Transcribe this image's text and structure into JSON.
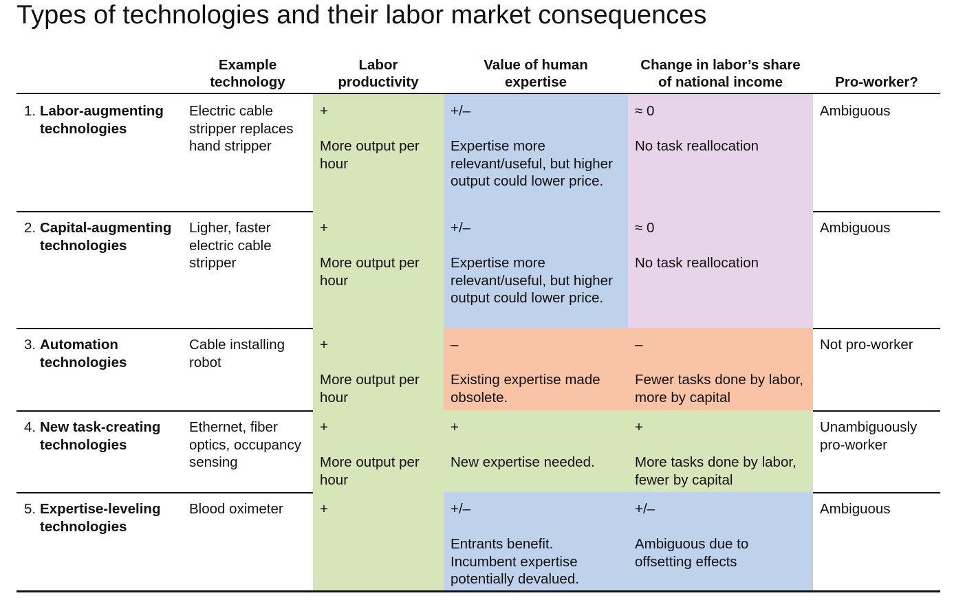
{
  "title": "Types of technologies and their labor market consequences",
  "table": {
    "headers": [
      "Example technology",
      "Labor productivity",
      "Value of human expertise",
      "Change in labor’s share of national income",
      "Pro-worker?"
    ],
    "rows": [
      {
        "number": "1.",
        "name": "Labor-augmenting technologies",
        "example": "Electric cable stripper replaces hand stripper",
        "productivity": {
          "sign": "+",
          "text": "More output per hour",
          "color": "#d6e6b9"
        },
        "expertise": {
          "sign": "+/–",
          "text": "Expertise more relevant/useful, but higher output could lower price.",
          "color": "#bed2eb"
        },
        "labor_share": {
          "sign": "≈ 0",
          "text": "No task reallocation",
          "color": "#e8d4e9"
        },
        "pro_worker": "Ambiguous"
      },
      {
        "number": "2.",
        "name": "Capital-augmenting technologies",
        "example": "Ligher, faster electric cable stripper",
        "productivity": {
          "sign": "+",
          "text": "More output per hour",
          "color": "#d6e6b9"
        },
        "expertise": {
          "sign": "+/–",
          "text": "Expertise more relevant/useful, but higher output could lower price.",
          "color": "#bed2eb"
        },
        "labor_share": {
          "sign": "≈ 0",
          "text": "No task reallocation",
          "color": "#e8d4e9"
        },
        "pro_worker": "Ambiguous"
      },
      {
        "number": "3.",
        "name": "Automation technologies",
        "example": "Cable installing robot",
        "productivity": {
          "sign": "+",
          "text": "More output per hour",
          "color": "#d6e6b9"
        },
        "expertise": {
          "sign": "–",
          "text": "Existing expertise made obsolete.",
          "color": "#f8c4a5"
        },
        "labor_share": {
          "sign": "–",
          "text": "Fewer tasks done by labor, more by capital",
          "color": "#f8c4a5"
        },
        "pro_worker": "Not pro-worker"
      },
      {
        "number": "4.",
        "name": "New task-creating technologies",
        "example": "Ethernet, fiber optics, occupancy sensing",
        "productivity": {
          "sign": "+",
          "text": "More output per hour",
          "color": "#d6e6b9"
        },
        "expertise": {
          "sign": "+",
          "text": "New expertise needed.",
          "color": "#d6e6b9"
        },
        "labor_share": {
          "sign": "+",
          "text": "More tasks done by labor, fewer by capital",
          "color": "#d6e6b9"
        },
        "pro_worker": "Unambiguously pro-worker"
      },
      {
        "number": "5.",
        "name": "Expertise-leveling technologies",
        "example": "Blood oximeter",
        "productivity": {
          "sign": "+",
          "color": "#d6e6b9"
        },
        "expertise": {
          "sign": "+/–",
          "text": "Entrants benefit. Incumbent expertise potentially devalued.",
          "color": "#bed2eb"
        },
        "labor_share": {
          "sign": "+/–",
          "text": "Ambiguous due to offsetting effects",
          "color": "#bed2eb"
        },
        "pro_worker": "Ambiguous"
      }
    ]
  }
}
